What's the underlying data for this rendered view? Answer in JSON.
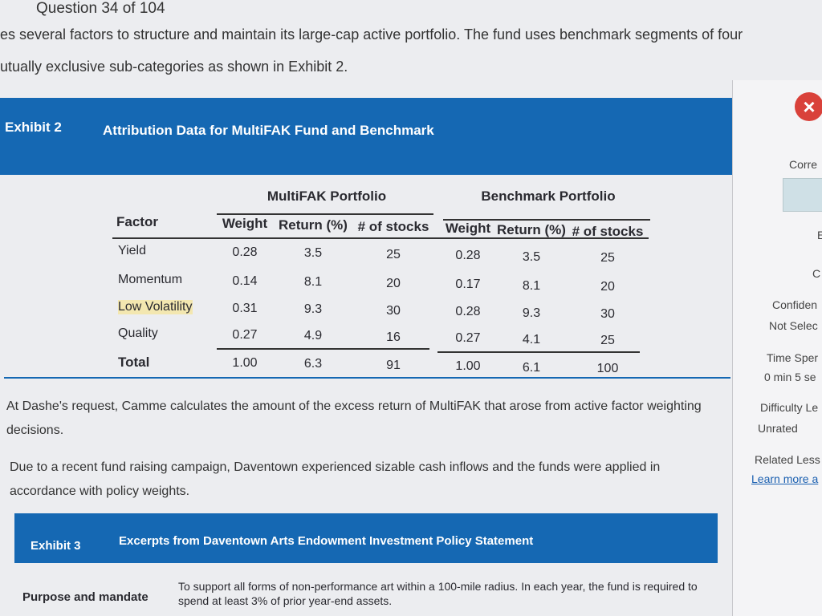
{
  "header": {
    "question": "Question 34 of 104"
  },
  "intro": [
    "es several factors to structure and maintain its large-cap active portfolio. The fund uses benchmark segments of four",
    "utually exclusive sub-categories as shown in Exhibit 2."
  ],
  "exhibit2": {
    "label": "Exhibit 2",
    "title": "Attribution Data for MultiFAK Fund and Benchmark",
    "table": {
      "groups": [
        "MultiFAK Portfolio",
        "Benchmark Portfolio"
      ],
      "columns": [
        "Factor",
        "Weight",
        "Return (%)",
        "# of stocks",
        "Weight",
        "Return (%)",
        "# of stocks"
      ],
      "rows": [
        [
          "Yield",
          "0.28",
          "3.5",
          "25",
          "0.28",
          "3.5",
          "25"
        ],
        [
          "Momentum",
          "0.14",
          "8.1",
          "20",
          "0.17",
          "8.1",
          "20"
        ],
        [
          "Low Volatility",
          "0.31",
          "9.3",
          "30",
          "0.28",
          "9.3",
          "30"
        ],
        [
          "Quality",
          "0.27",
          "4.9",
          "16",
          "0.27",
          "4.1",
          "25"
        ],
        [
          "Total",
          "1.00",
          "6.3",
          "91",
          "1.00",
          "6.1",
          "100"
        ]
      ]
    }
  },
  "paragraphs": [
    "At Dashe's request, Camme calculates the amount of the excess return of MultiFAK that arose from active factor weighting decisions.",
    "Due to a recent fund raising campaign, Daventown experienced sizable cash inflows and the funds were applied in accordance with policy weights."
  ],
  "exhibit3": {
    "label": "Exhibit 3",
    "title": "Excerpts from Daventown Arts Endowment Investment Policy Statement",
    "purpose_label": "Purpose and mandate",
    "purpose_text": "To support all forms of non-performance art within a 100-mile radius. In each year, the fund is required to spend at least 3% of prior year-end assets."
  },
  "sidebar": {
    "items": [
      "Corre",
      "E",
      "C",
      "Confiden",
      "Not Selec",
      "Time Sper",
      "0 min 5 se",
      "Difficulty Le",
      "Unrated",
      "Related Less",
      "Learn more a"
    ]
  }
}
